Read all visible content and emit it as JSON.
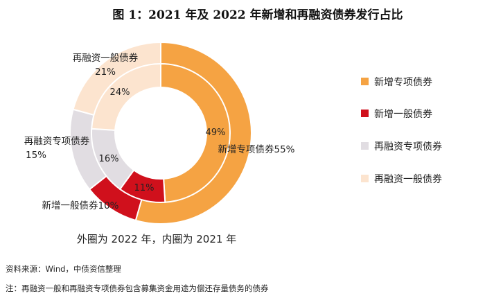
{
  "chart_data": {
    "type": "pie",
    "title": "图 1：2021 年及 2022 年新增和再融资债券发行占比",
    "categories": [
      "新增专项债券",
      "新增一般债券",
      "再融资专项债券",
      "再融资一般债券"
    ],
    "colors": [
      "#F5A343",
      "#D0101C",
      "#E1DDE2",
      "#FCE4CF"
    ],
    "series": [
      {
        "name": "2022",
        "ring": "outer",
        "values": [
          55,
          10,
          15,
          21
        ]
      },
      {
        "name": "2021",
        "ring": "inner",
        "values": [
          49,
          11,
          16,
          24
        ]
      }
    ],
    "outer_labels": [
      {
        "name": "新增专项债券",
        "value": "55%"
      },
      {
        "name": "新增一般债券",
        "value": "10%"
      },
      {
        "name": "再融资专项债券",
        "value": "15%"
      },
      {
        "name": "再融资一般债券",
        "value": "21%"
      }
    ],
    "inner_labels": [
      "49%",
      "11%",
      "16%",
      "24%"
    ],
    "legend": [
      "新增专项债券",
      "新增一般债券",
      "再融资专项债券",
      "再融资一般债券"
    ],
    "caption": "外圈为 2022 年，内圈为 2021 年",
    "source": "资料来源：Wind，中债资信整理",
    "note": "注：再融资一般和再融资专项债券包含募集资金用途为偿还存量债务的债券"
  }
}
